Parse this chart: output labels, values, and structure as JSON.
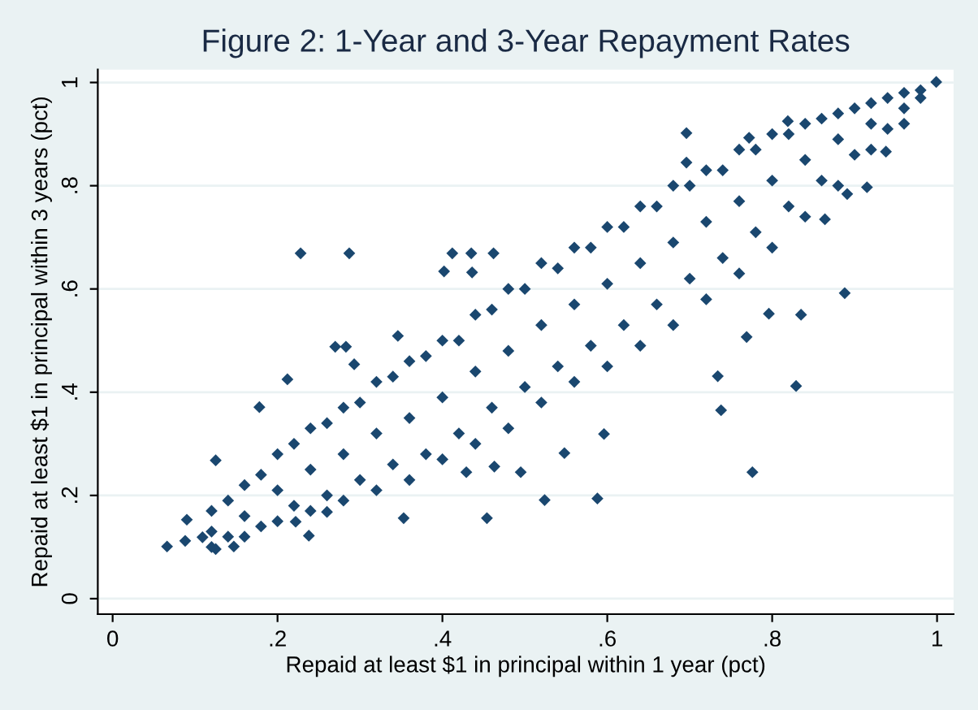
{
  "chart_data": {
    "type": "scatter",
    "title": "Figure 2: 1-Year and 3-Year Repayment Rates",
    "xlabel": "Repaid at least $1 in principal within 1 year (pct)",
    "ylabel": "Repaid at least $1 in principal within 3 years (pct)",
    "xlim": [
      -0.018,
      1.02
    ],
    "ylim": [
      -0.03,
      1.025
    ],
    "xticks": [
      0,
      {
        "value": 0.2,
        "label": ".2"
      },
      {
        "value": 0.4,
        "label": ".4"
      },
      {
        "value": 0.6,
        "label": ".6"
      },
      {
        "value": 0.8,
        "label": ".8"
      },
      1
    ],
    "yticks": [
      0,
      {
        "value": 0.2,
        "label": ".2"
      },
      {
        "value": 0.4,
        "label": ".4"
      },
      {
        "value": 0.6,
        "label": ".6"
      },
      {
        "value": 0.8,
        "label": ".8"
      },
      1
    ],
    "grid": "y",
    "marker": "diamond",
    "series": [
      {
        "color": "#1a476f",
        "x": [
          0.066,
          0.088,
          0.09,
          0.109,
          0.125,
          0.125,
          0.147,
          0.178,
          0.228,
          0.287,
          0.212,
          0.353,
          0.454,
          0.524,
          0.588,
          0.776,
          0.829,
          0.738,
          0.888,
          0.696,
          0.819,
          0.999,
          0.938,
          0.915,
          0.772,
          0.696,
          0.734,
          0.769,
          0.835,
          0.796,
          0.412,
          0.435,
          0.462,
          0.402,
          0.436,
          0.346,
          0.27,
          0.283,
          0.293,
          0.238,
          0.222,
          0.26,
          0.429,
          0.463,
          0.495,
          0.596,
          0.548,
          0.864,
          0.891,
          0.12,
          0.12,
          0.12,
          0.16,
          0.16,
          0.16,
          0.2,
          0.2,
          0.2,
          0.24,
          0.24,
          0.24,
          0.28,
          0.28,
          0.28,
          0.32,
          0.32,
          0.32,
          0.36,
          0.36,
          0.36,
          0.4,
          0.4,
          0.4,
          0.44,
          0.44,
          0.44,
          0.48,
          0.48,
          0.48,
          0.52,
          0.52,
          0.52,
          0.56,
          0.56,
          0.56,
          0.6,
          0.6,
          0.6,
          0.64,
          0.64,
          0.64,
          0.68,
          0.68,
          0.68,
          0.72,
          0.72,
          0.72,
          0.76,
          0.76,
          0.76,
          0.8,
          0.8,
          0.8,
          0.84,
          0.84,
          0.84,
          0.88,
          0.88,
          0.88,
          0.92,
          0.92,
          0.92,
          0.96,
          0.96,
          0.96,
          0.98,
          0.98,
          0.14,
          0.14,
          0.18,
          0.18,
          0.22,
          0.22,
          0.26,
          0.26,
          0.3,
          0.3,
          0.34,
          0.34,
          0.38,
          0.38,
          0.42,
          0.42,
          0.46,
          0.46,
          0.5,
          0.5,
          0.54,
          0.54,
          0.58,
          0.58,
          0.62,
          0.62,
          0.66,
          0.66,
          0.7,
          0.7,
          0.74,
          0.74,
          0.78,
          0.78,
          0.82,
          0.82,
          0.86,
          0.86,
          0.9,
          0.9,
          0.94,
          0.94
        ],
        "values": [
          0.101,
          0.112,
          0.153,
          0.119,
          0.096,
          0.268,
          0.101,
          0.371,
          0.669,
          0.669,
          0.425,
          0.156,
          0.156,
          0.191,
          0.194,
          0.245,
          0.412,
          0.365,
          0.592,
          0.902,
          0.925,
          1.001,
          0.866,
          0.797,
          0.893,
          0.845,
          0.431,
          0.507,
          0.55,
          0.552,
          0.669,
          0.669,
          0.669,
          0.634,
          0.632,
          0.509,
          0.488,
          0.488,
          0.454,
          0.122,
          0.149,
          0.168,
          0.245,
          0.256,
          0.245,
          0.319,
          0.282,
          0.735,
          0.784,
          0.17,
          0.13,
          0.1,
          0.22,
          0.16,
          0.12,
          0.28,
          0.21,
          0.15,
          0.33,
          0.25,
          0.17,
          0.37,
          0.28,
          0.19,
          0.42,
          0.32,
          0.21,
          0.46,
          0.35,
          0.23,
          0.5,
          0.39,
          0.27,
          0.55,
          0.44,
          0.3,
          0.6,
          0.48,
          0.33,
          0.65,
          0.53,
          0.38,
          0.68,
          0.57,
          0.42,
          0.72,
          0.61,
          0.45,
          0.76,
          0.65,
          0.49,
          0.8,
          0.69,
          0.53,
          0.83,
          0.73,
          0.58,
          0.87,
          0.77,
          0.63,
          0.9,
          0.81,
          0.68,
          0.92,
          0.85,
          0.74,
          0.94,
          0.89,
          0.8,
          0.96,
          0.92,
          0.87,
          0.98,
          0.95,
          0.92,
          0.985,
          0.97,
          0.19,
          0.12,
          0.24,
          0.14,
          0.3,
          0.18,
          0.34,
          0.2,
          0.38,
          0.23,
          0.43,
          0.26,
          0.47,
          0.28,
          0.5,
          0.32,
          0.56,
          0.37,
          0.6,
          0.41,
          0.64,
          0.45,
          0.68,
          0.49,
          0.72,
          0.53,
          0.76,
          0.57,
          0.8,
          0.62,
          0.83,
          0.66,
          0.87,
          0.71,
          0.9,
          0.76,
          0.93,
          0.81,
          0.95,
          0.86,
          0.97,
          0.91
        ]
      }
    ]
  }
}
